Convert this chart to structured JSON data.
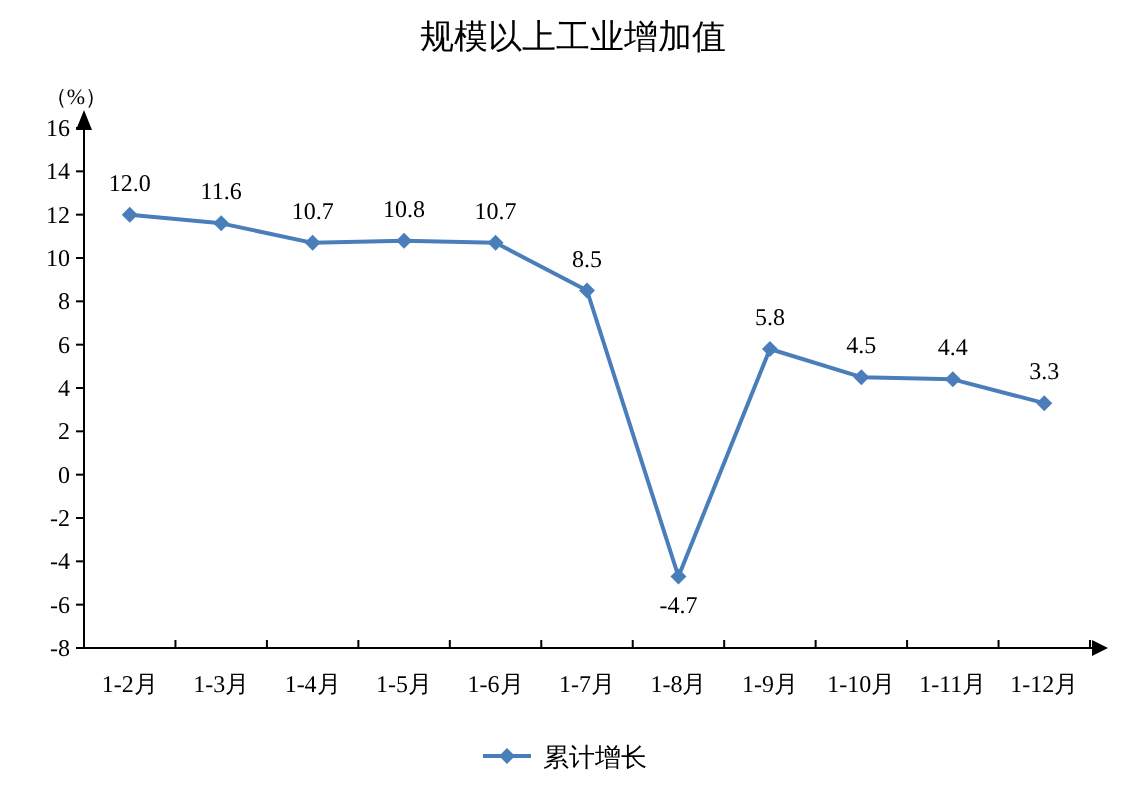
{
  "chart_data": {
    "type": "line",
    "title": "规模以上工业增加值",
    "ylabel": "（%）",
    "categories": [
      "1-2月",
      "1-3月",
      "1-4月",
      "1-5月",
      "1-6月",
      "1-7月",
      "1-8月",
      "1-9月",
      "1-10月",
      "1-11月",
      "1-12月"
    ],
    "series": [
      {
        "name": "累计增长",
        "color": "#4a7ebb",
        "values": [
          12.0,
          11.6,
          10.7,
          10.8,
          10.7,
          8.5,
          -4.7,
          5.8,
          4.5,
          4.4,
          3.3
        ]
      }
    ],
    "ylim": [
      -8,
      16
    ],
    "yticks": [
      -8,
      -6,
      -4,
      -2,
      0,
      2,
      4,
      6,
      8,
      10,
      12,
      14,
      16
    ],
    "value_labels": [
      "12.0",
      "11.6",
      "10.7",
      "10.8",
      "10.7",
      "8.5",
      "-4.7",
      "5.8",
      "4.5",
      "4.4",
      "3.3"
    ],
    "marker": "diamond",
    "line_style": "solid",
    "grid": false,
    "legend": "bottom"
  }
}
